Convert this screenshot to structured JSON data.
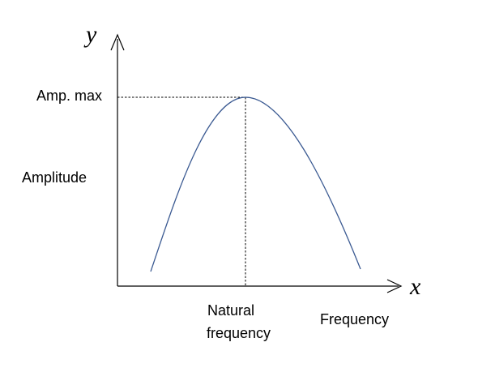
{
  "axes": {
    "y_variable": "y",
    "x_variable": "x",
    "y_axis_label": "Amplitude",
    "x_axis_label": "Frequency"
  },
  "annotations": {
    "peak_label": "Amp. max",
    "natural_frequency_line1": "Natural",
    "natural_frequency_line2": "frequency"
  },
  "colors": {
    "curve": "#3b5a92",
    "axes": "#000000"
  }
}
